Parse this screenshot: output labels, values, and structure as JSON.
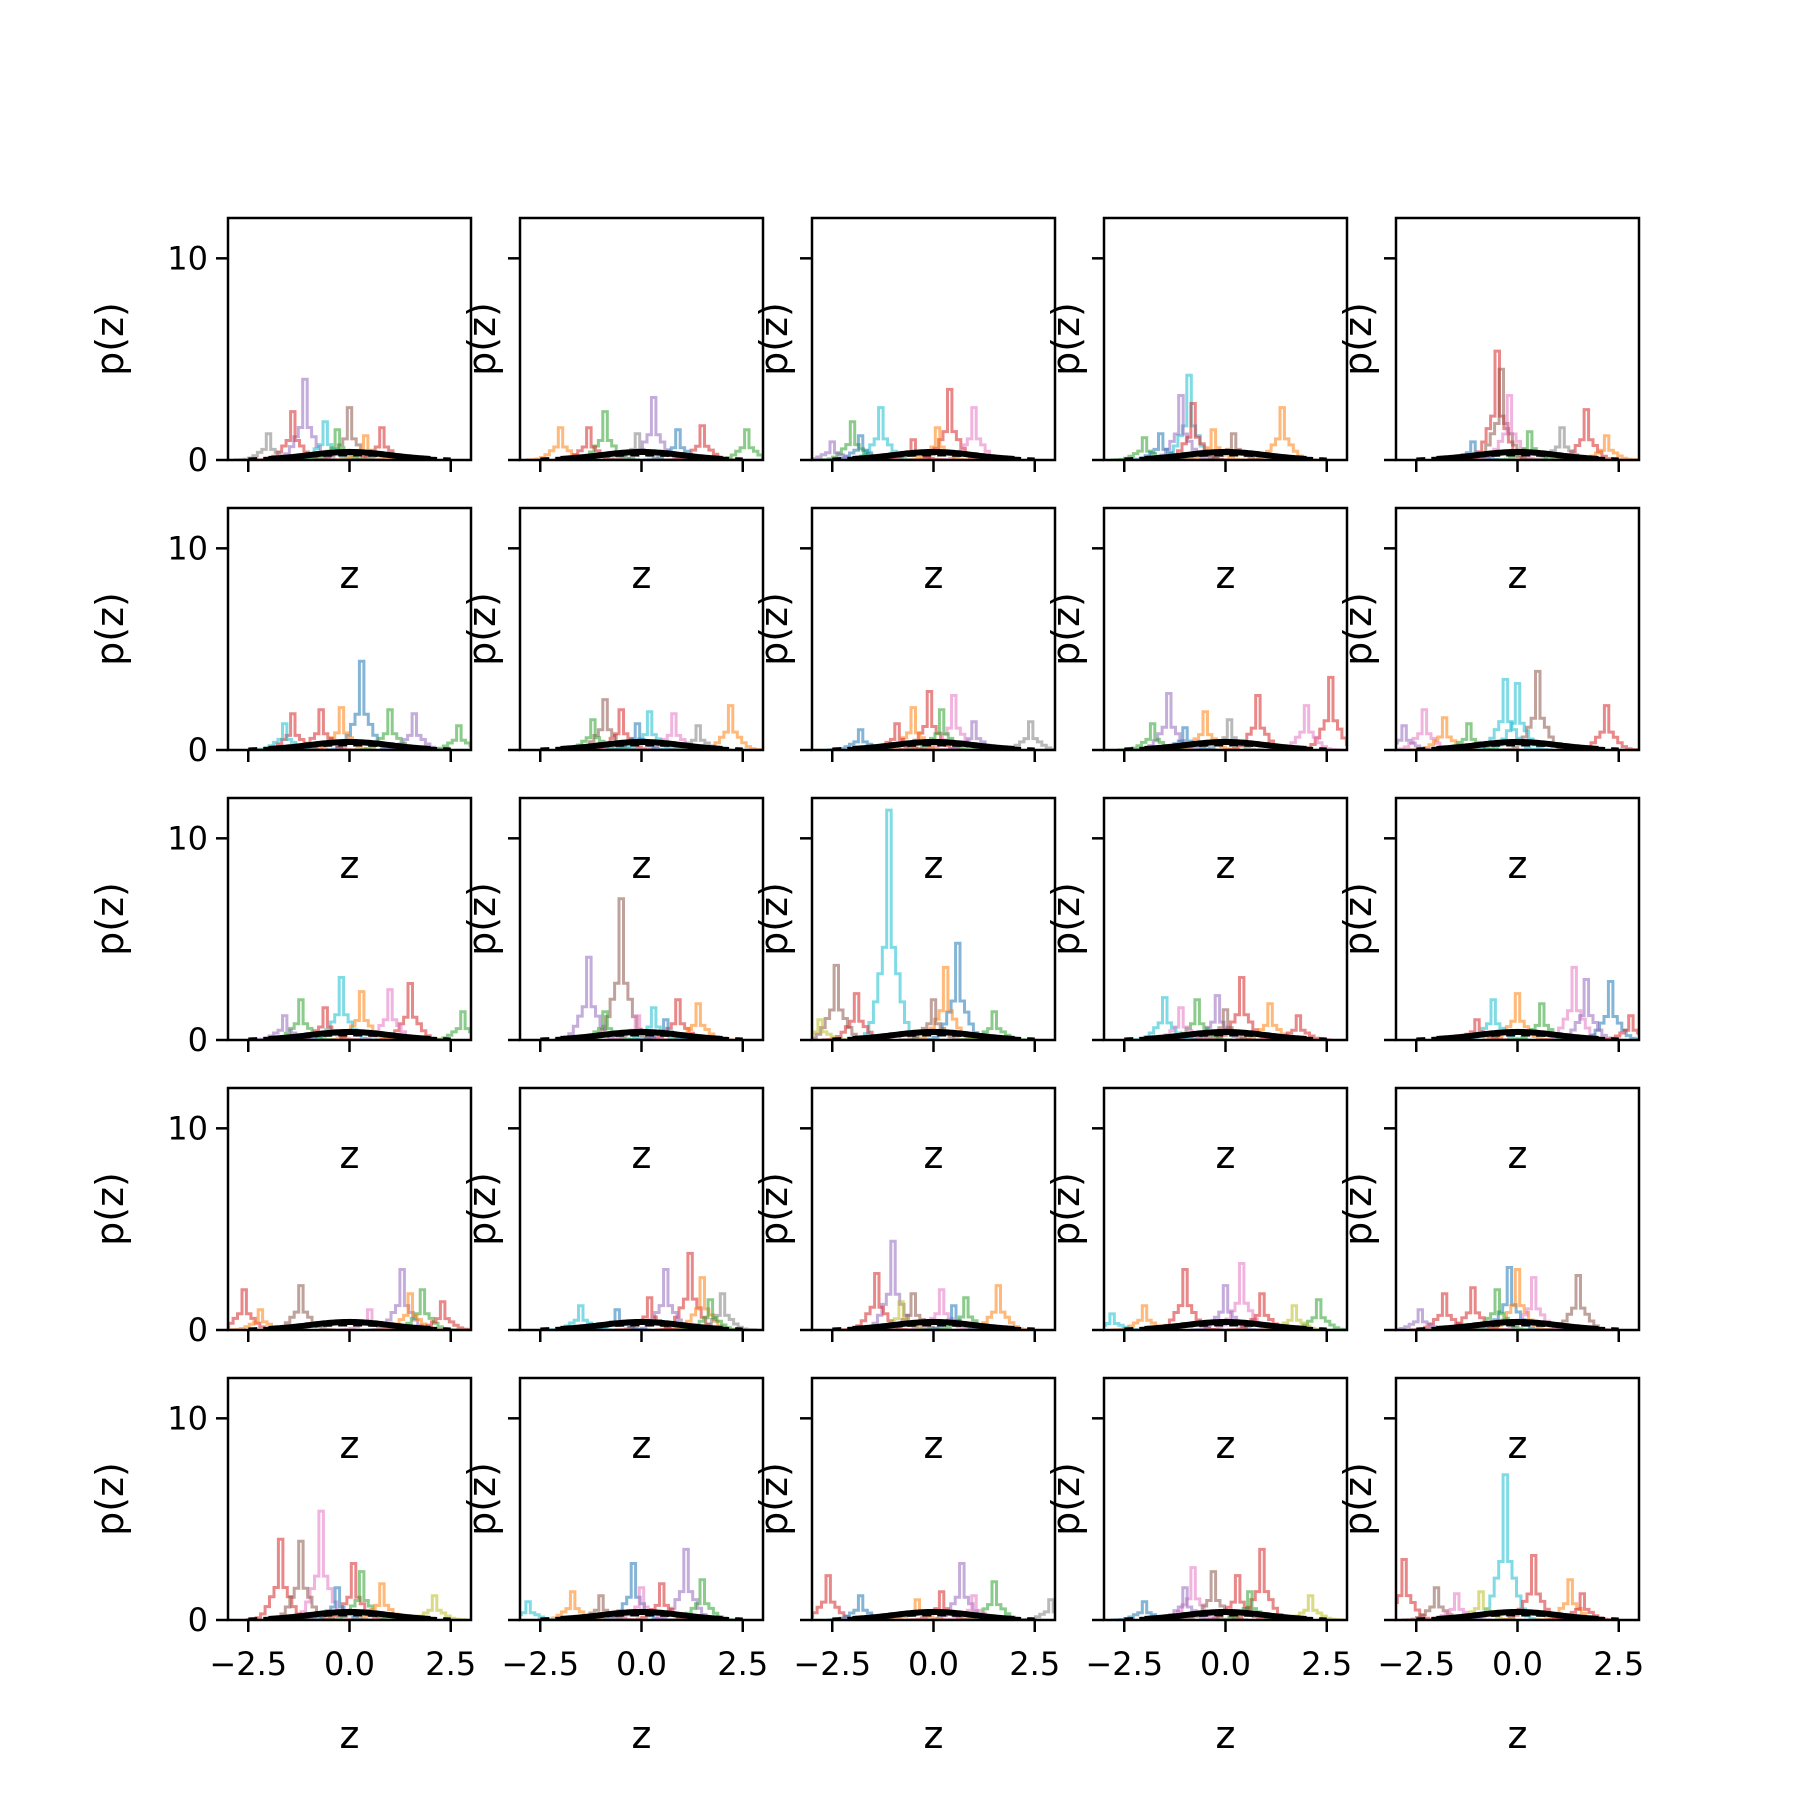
{
  "chart_data": {
    "type": "step-histogram-grid",
    "rows": 5,
    "cols": 5,
    "xlabel": "z",
    "ylabel": "p(z)",
    "xlim": [
      -3.0,
      3.0
    ],
    "ylim": [
      0,
      12
    ],
    "xticks": [
      -2.5,
      0.0,
      2.5
    ],
    "xtick_labels": [
      "−2.5",
      "0.0",
      "2.5"
    ],
    "yticks": [
      0,
      10
    ],
    "ytick_labels": [
      "0",
      "10"
    ],
    "xtick_labels_shown_on_bottom_row_only": true,
    "ytick_labels_shown_on_first_column_only": true,
    "series_colors": [
      "#1f77b4",
      "#ff7f0e",
      "#2ca02c",
      "#d62728",
      "#9467bd",
      "#8c564b",
      "#e377c2",
      "#7f7f7f",
      "#bcbd22",
      "#17becf"
    ],
    "reference_curve": {
      "style": "thick solid black",
      "mean": 0.0,
      "std": 1.0,
      "peak": 0.4
    },
    "reference_dashed": {
      "style": "dashed black",
      "peak": 0.25
    },
    "panels": [
      {
        "row": 0,
        "col": 0,
        "peaks": [
          [
            -1.1,
            4.0,
            "#9467bd"
          ],
          [
            0.0,
            2.6,
            "#8c564b"
          ],
          [
            -1.4,
            2.4,
            "#d62728"
          ],
          [
            -0.6,
            1.9,
            "#17becf"
          ],
          [
            0.8,
            1.6,
            "#d62728"
          ],
          [
            -2.0,
            1.3,
            "#7f7f7f"
          ],
          [
            -0.3,
            1.5,
            "#2ca02c"
          ],
          [
            0.4,
            1.2,
            "#ff7f0e"
          ]
        ]
      },
      {
        "row": 0,
        "col": 1,
        "peaks": [
          [
            0.3,
            3.1,
            "#9467bd"
          ],
          [
            -0.9,
            2.4,
            "#2ca02c"
          ],
          [
            -2.0,
            1.6,
            "#ff7f0e"
          ],
          [
            -1.3,
            1.6,
            "#d62728"
          ],
          [
            1.5,
            1.7,
            "#d62728"
          ],
          [
            2.6,
            1.5,
            "#2ca02c"
          ],
          [
            0.9,
            1.5,
            "#1f77b4"
          ],
          [
            -0.1,
            1.3,
            "#7f7f7f"
          ]
        ]
      },
      {
        "row": 0,
        "col": 2,
        "peaks": [
          [
            0.4,
            3.5,
            "#d62728"
          ],
          [
            -1.3,
            2.6,
            "#17becf"
          ],
          [
            1.0,
            2.6,
            "#e377c2"
          ],
          [
            -2.0,
            1.9,
            "#2ca02c"
          ],
          [
            0.1,
            1.6,
            "#ff7f0e"
          ],
          [
            -1.8,
            1.2,
            "#1f77b4"
          ],
          [
            -2.5,
            0.9,
            "#9467bd"
          ],
          [
            -0.5,
            1.0,
            "#d62728"
          ]
        ]
      },
      {
        "row": 0,
        "col": 3,
        "peaks": [
          [
            -0.9,
            4.2,
            "#17becf"
          ],
          [
            -1.1,
            3.2,
            "#9467bd"
          ],
          [
            -0.8,
            2.8,
            "#d62728"
          ],
          [
            1.4,
            2.6,
            "#ff7f0e"
          ],
          [
            -2.0,
            1.1,
            "#2ca02c"
          ],
          [
            -1.6,
            1.3,
            "#1f77b4"
          ],
          [
            0.2,
            1.3,
            "#8c564b"
          ],
          [
            -0.3,
            1.5,
            "#ff7f0e"
          ]
        ]
      },
      {
        "row": 0,
        "col": 4,
        "peaks": [
          [
            -0.5,
            5.4,
            "#d62728"
          ],
          [
            -0.4,
            4.5,
            "#8c564b"
          ],
          [
            -0.2,
            3.2,
            "#e377c2"
          ],
          [
            1.7,
            2.5,
            "#d62728"
          ],
          [
            1.1,
            1.6,
            "#7f7f7f"
          ],
          [
            0.3,
            1.4,
            "#2ca02c"
          ],
          [
            -1.1,
            0.9,
            "#1f77b4"
          ],
          [
            2.2,
            1.2,
            "#ff7f0e"
          ]
        ]
      },
      {
        "row": 1,
        "col": 0,
        "peaks": [
          [
            0.3,
            4.4,
            "#1f77b4"
          ],
          [
            -0.2,
            2.1,
            "#ff7f0e"
          ],
          [
            -1.4,
            1.8,
            "#d62728"
          ],
          [
            -0.7,
            2.0,
            "#d62728"
          ],
          [
            1.0,
            2.0,
            "#2ca02c"
          ],
          [
            -1.6,
            1.3,
            "#17becf"
          ],
          [
            1.6,
            1.8,
            "#9467bd"
          ],
          [
            2.7,
            1.2,
            "#2ca02c"
          ]
        ]
      },
      {
        "row": 1,
        "col": 1,
        "peaks": [
          [
            -0.9,
            2.5,
            "#8c564b"
          ],
          [
            2.2,
            2.2,
            "#ff7f0e"
          ],
          [
            -0.5,
            2.0,
            "#d62728"
          ],
          [
            0.2,
            1.9,
            "#17becf"
          ],
          [
            0.8,
            1.8,
            "#e377c2"
          ],
          [
            -1.2,
            1.5,
            "#2ca02c"
          ],
          [
            -0.1,
            1.3,
            "#1f77b4"
          ],
          [
            1.4,
            1.2,
            "#7f7f7f"
          ]
        ]
      },
      {
        "row": 1,
        "col": 2,
        "peaks": [
          [
            -0.1,
            2.9,
            "#d62728"
          ],
          [
            0.5,
            2.7,
            "#e377c2"
          ],
          [
            -0.5,
            2.1,
            "#ff7f0e"
          ],
          [
            0.2,
            2.0,
            "#2ca02c"
          ],
          [
            2.4,
            1.4,
            "#7f7f7f"
          ],
          [
            -1.8,
            1.0,
            "#1f77b4"
          ],
          [
            1.0,
            1.4,
            "#9467bd"
          ],
          [
            -0.9,
            1.3,
            "#d62728"
          ]
        ]
      },
      {
        "row": 1,
        "col": 3,
        "peaks": [
          [
            2.6,
            3.6,
            "#d62728"
          ],
          [
            -1.4,
            2.8,
            "#9467bd"
          ],
          [
            0.8,
            2.7,
            "#d62728"
          ],
          [
            2.0,
            2.2,
            "#e377c2"
          ],
          [
            -0.5,
            1.9,
            "#ff7f0e"
          ],
          [
            0.1,
            1.5,
            "#7f7f7f"
          ],
          [
            -1.8,
            1.3,
            "#2ca02c"
          ],
          [
            -1.0,
            1.1,
            "#1f77b4"
          ]
        ]
      },
      {
        "row": 1,
        "col": 4,
        "peaks": [
          [
            0.5,
            3.9,
            "#8c564b"
          ],
          [
            -0.3,
            3.5,
            "#17becf"
          ],
          [
            0.0,
            3.3,
            "#17becf"
          ],
          [
            2.2,
            2.2,
            "#d62728"
          ],
          [
            -2.3,
            2.0,
            "#e377c2"
          ],
          [
            -1.8,
            1.6,
            "#ff7f0e"
          ],
          [
            -2.8,
            1.2,
            "#9467bd"
          ],
          [
            -1.2,
            1.3,
            "#2ca02c"
          ]
        ]
      },
      {
        "row": 2,
        "col": 0,
        "peaks": [
          [
            -0.2,
            3.1,
            "#17becf"
          ],
          [
            1.5,
            2.8,
            "#d62728"
          ],
          [
            1.0,
            2.5,
            "#e377c2"
          ],
          [
            0.3,
            2.4,
            "#ff7f0e"
          ],
          [
            -1.2,
            2.0,
            "#2ca02c"
          ],
          [
            -0.6,
            1.6,
            "#d62728"
          ],
          [
            2.8,
            1.4,
            "#2ca02c"
          ],
          [
            -1.6,
            1.2,
            "#9467bd"
          ]
        ]
      },
      {
        "row": 2,
        "col": 1,
        "peaks": [
          [
            -0.5,
            7.0,
            "#8c564b"
          ],
          [
            -1.3,
            4.1,
            "#9467bd"
          ],
          [
            0.9,
            2.0,
            "#d62728"
          ],
          [
            1.4,
            1.8,
            "#ff7f0e"
          ],
          [
            0.3,
            1.6,
            "#17becf"
          ],
          [
            -0.9,
            1.4,
            "#2ca02c"
          ],
          [
            -0.1,
            1.2,
            "#e377c2"
          ],
          [
            0.6,
            1.0,
            "#1f77b4"
          ]
        ]
      },
      {
        "row": 2,
        "col": 2,
        "peaks": [
          [
            -1.1,
            11.4,
            "#17becf"
          ],
          [
            0.6,
            4.8,
            "#1f77b4"
          ],
          [
            0.3,
            3.6,
            "#ff7f0e"
          ],
          [
            -2.4,
            3.7,
            "#8c564b"
          ],
          [
            -1.9,
            2.3,
            "#d62728"
          ],
          [
            0.0,
            2.0,
            "#8c564b"
          ],
          [
            1.5,
            1.4,
            "#2ca02c"
          ],
          [
            -2.8,
            1.0,
            "#bcbd22"
          ]
        ]
      },
      {
        "row": 2,
        "col": 3,
        "peaks": [
          [
            0.4,
            3.1,
            "#d62728"
          ],
          [
            -0.2,
            2.2,
            "#9467bd"
          ],
          [
            -1.5,
            2.1,
            "#17becf"
          ],
          [
            -0.7,
            2.0,
            "#2ca02c"
          ],
          [
            1.1,
            1.8,
            "#ff7f0e"
          ],
          [
            -1.1,
            1.6,
            "#e377c2"
          ],
          [
            0.0,
            1.5,
            "#8c564b"
          ],
          [
            1.8,
            1.2,
            "#d62728"
          ]
        ]
      },
      {
        "row": 2,
        "col": 4,
        "peaks": [
          [
            1.4,
            3.6,
            "#e377c2"
          ],
          [
            2.3,
            2.9,
            "#1f77b4"
          ],
          [
            1.7,
            3.0,
            "#9467bd"
          ],
          [
            0.0,
            2.3,
            "#ff7f0e"
          ],
          [
            -0.6,
            2.0,
            "#17becf"
          ],
          [
            0.6,
            1.8,
            "#2ca02c"
          ],
          [
            2.8,
            1.2,
            "#d62728"
          ],
          [
            -1.0,
            1.0,
            "#d62728"
          ]
        ]
      },
      {
        "row": 3,
        "col": 0,
        "peaks": [
          [
            1.3,
            3.0,
            "#9467bd"
          ],
          [
            -2.6,
            2.0,
            "#d62728"
          ],
          [
            -1.2,
            2.2,
            "#8c564b"
          ],
          [
            1.8,
            2.0,
            "#2ca02c"
          ],
          [
            1.5,
            1.8,
            "#ff7f0e"
          ],
          [
            2.3,
            1.4,
            "#d62728"
          ],
          [
            -2.2,
            1.0,
            "#ff7f0e"
          ],
          [
            0.5,
            1.0,
            "#e377c2"
          ]
        ]
      },
      {
        "row": 3,
        "col": 1,
        "peaks": [
          [
            1.2,
            3.8,
            "#d62728"
          ],
          [
            0.6,
            3.0,
            "#9467bd"
          ],
          [
            1.5,
            2.6,
            "#ff7f0e"
          ],
          [
            2.0,
            1.8,
            "#7f7f7f"
          ],
          [
            0.2,
            1.6,
            "#d62728"
          ],
          [
            -1.5,
            1.2,
            "#17becf"
          ],
          [
            1.7,
            1.5,
            "#2ca02c"
          ],
          [
            -0.6,
            1.0,
            "#1f77b4"
          ]
        ]
      },
      {
        "row": 3,
        "col": 2,
        "peaks": [
          [
            -1.0,
            4.4,
            "#9467bd"
          ],
          [
            -1.4,
            2.8,
            "#d62728"
          ],
          [
            1.6,
            2.2,
            "#ff7f0e"
          ],
          [
            0.2,
            2.0,
            "#e377c2"
          ],
          [
            -0.5,
            1.8,
            "#8c564b"
          ],
          [
            0.8,
            1.6,
            "#2ca02c"
          ],
          [
            -0.8,
            1.4,
            "#bcbd22"
          ],
          [
            0.5,
            1.2,
            "#1f77b4"
          ]
        ]
      },
      {
        "row": 3,
        "col": 3,
        "peaks": [
          [
            0.4,
            3.3,
            "#e377c2"
          ],
          [
            -1.0,
            3.0,
            "#d62728"
          ],
          [
            0.0,
            2.2,
            "#9467bd"
          ],
          [
            2.3,
            1.5,
            "#2ca02c"
          ],
          [
            0.9,
            1.8,
            "#d62728"
          ],
          [
            -2.0,
            1.2,
            "#ff7f0e"
          ],
          [
            1.7,
            1.2,
            "#bcbd22"
          ],
          [
            -2.8,
            0.8,
            "#17becf"
          ]
        ]
      },
      {
        "row": 3,
        "col": 4,
        "peaks": [
          [
            -0.2,
            3.1,
            "#1f77b4"
          ],
          [
            0.0,
            3.0,
            "#ff7f0e"
          ],
          [
            1.5,
            2.7,
            "#8c564b"
          ],
          [
            0.4,
            2.6,
            "#e377c2"
          ],
          [
            -1.1,
            2.1,
            "#d62728"
          ],
          [
            -0.5,
            2.0,
            "#2ca02c"
          ],
          [
            -1.8,
            1.8,
            "#d62728"
          ],
          [
            -2.4,
            1.0,
            "#9467bd"
          ]
        ]
      },
      {
        "row": 4,
        "col": 0,
        "peaks": [
          [
            -0.7,
            5.4,
            "#e377c2"
          ],
          [
            -1.7,
            4.0,
            "#d62728"
          ],
          [
            -1.2,
            3.9,
            "#8c564b"
          ],
          [
            0.1,
            2.8,
            "#d62728"
          ],
          [
            0.3,
            2.4,
            "#2ca02c"
          ],
          [
            2.1,
            1.2,
            "#bcbd22"
          ],
          [
            0.8,
            1.8,
            "#ff7f0e"
          ],
          [
            -0.3,
            1.6,
            "#1f77b4"
          ]
        ]
      },
      {
        "row": 4,
        "col": 1,
        "peaks": [
          [
            1.1,
            3.5,
            "#9467bd"
          ],
          [
            -0.2,
            2.8,
            "#1f77b4"
          ],
          [
            1.5,
            2.0,
            "#2ca02c"
          ],
          [
            0.5,
            1.8,
            "#d62728"
          ],
          [
            -1.7,
            1.4,
            "#ff7f0e"
          ],
          [
            -2.8,
            0.9,
            "#17becf"
          ],
          [
            0.0,
            1.6,
            "#e377c2"
          ],
          [
            -1.0,
            1.2,
            "#8c564b"
          ]
        ]
      },
      {
        "row": 4,
        "col": 2,
        "peaks": [
          [
            0.7,
            2.8,
            "#9467bd"
          ],
          [
            -2.6,
            2.2,
            "#d62728"
          ],
          [
            1.5,
            1.9,
            "#2ca02c"
          ],
          [
            0.2,
            1.4,
            "#d62728"
          ],
          [
            -1.8,
            1.2,
            "#1f77b4"
          ],
          [
            -0.4,
            1.0,
            "#ff7f0e"
          ],
          [
            2.9,
            1.0,
            "#7f7f7f"
          ],
          [
            1.0,
            1.2,
            "#e377c2"
          ]
        ]
      },
      {
        "row": 4,
        "col": 3,
        "peaks": [
          [
            0.9,
            3.5,
            "#d62728"
          ],
          [
            -0.8,
            2.6,
            "#e377c2"
          ],
          [
            -0.3,
            2.4,
            "#8c564b"
          ],
          [
            0.3,
            2.2,
            "#d62728"
          ],
          [
            -1.0,
            1.6,
            "#9467bd"
          ],
          [
            2.1,
            1.2,
            "#bcbd22"
          ],
          [
            -2.0,
            0.9,
            "#1f77b4"
          ],
          [
            0.6,
            1.4,
            "#2ca02c"
          ]
        ]
      },
      {
        "row": 4,
        "col": 4,
        "peaks": [
          [
            -0.3,
            7.2,
            "#17becf"
          ],
          [
            -2.8,
            3.0,
            "#d62728"
          ],
          [
            0.4,
            3.2,
            "#d62728"
          ],
          [
            1.3,
            2.0,
            "#ff7f0e"
          ],
          [
            -2.0,
            1.6,
            "#8c564b"
          ],
          [
            -1.5,
            1.3,
            "#e377c2"
          ],
          [
            -0.9,
            1.4,
            "#bcbd22"
          ],
          [
            1.6,
            1.3,
            "#d62728"
          ]
        ]
      }
    ]
  }
}
